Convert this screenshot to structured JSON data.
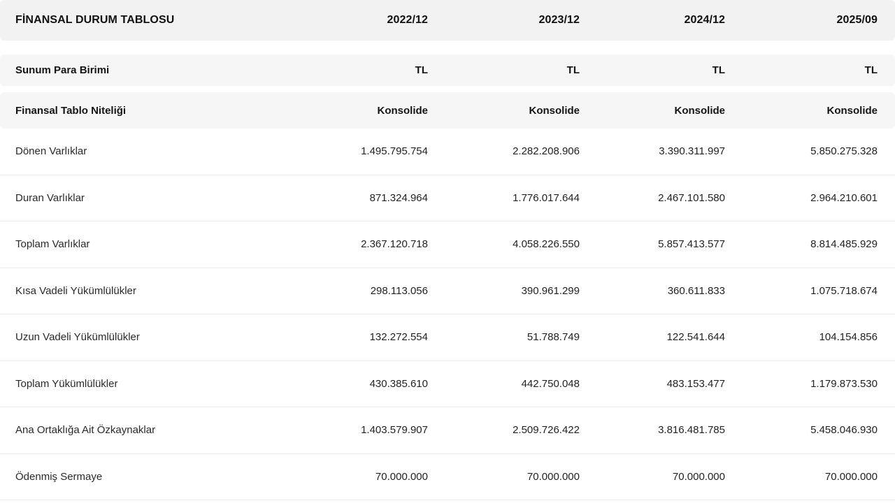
{
  "table": {
    "title": "FİNANSAL DURUM TABLOSU",
    "periods": [
      "2022/12",
      "2023/12",
      "2024/12",
      "2025/09"
    ],
    "currency_row": {
      "label": "Sunum Para Birimi",
      "values": [
        "TL",
        "TL",
        "TL",
        "TL"
      ]
    },
    "nature_row": {
      "label": "Finansal Tablo Niteliği",
      "values": [
        "Konsolide",
        "Konsolide",
        "Konsolide",
        "Konsolide"
      ]
    },
    "rows": [
      {
        "label": "Dönen Varlıklar",
        "values": [
          "1.495.795.754",
          "2.282.208.906",
          "3.390.311.997",
          "5.850.275.328"
        ]
      },
      {
        "label": "Duran Varlıklar",
        "values": [
          "871.324.964",
          "1.776.017.644",
          "2.467.101.580",
          "2.964.210.601"
        ]
      },
      {
        "label": "Toplam Varlıklar",
        "values": [
          "2.367.120.718",
          "4.058.226.550",
          "5.857.413.577",
          "8.814.485.929"
        ]
      },
      {
        "label": "Kısa Vadeli Yükümlülükler",
        "values": [
          "298.113.056",
          "390.961.299",
          "360.611.833",
          "1.075.718.674"
        ]
      },
      {
        "label": "Uzun Vadeli Yükümlülükler",
        "values": [
          "132.272.554",
          "51.788.749",
          "122.541.644",
          "104.154.856"
        ]
      },
      {
        "label": "Toplam Yükümlülükler",
        "values": [
          "430.385.610",
          "442.750.048",
          "483.153.477",
          "1.179.873.530"
        ]
      },
      {
        "label": "Ana Ortaklığa Ait Özkaynaklar",
        "values": [
          "1.403.579.907",
          "2.509.726.422",
          "3.816.481.785",
          "5.458.046.930"
        ]
      },
      {
        "label": "Ödenmiş Sermaye",
        "values": [
          "70.000.000",
          "70.000.000",
          "70.000.000",
          "70.000.000"
        ]
      }
    ]
  }
}
